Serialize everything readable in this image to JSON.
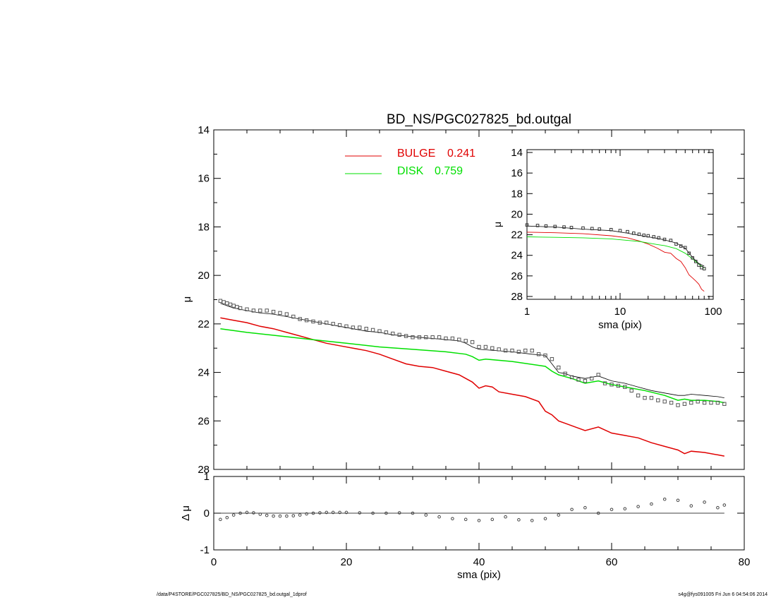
{
  "chart_data": [
    {
      "type": "line",
      "title": "BD_NS/PGC027825_bd.outgal",
      "xlabel": "",
      "ylabel": "μ",
      "xlim": [
        0,
        80
      ],
      "ylim": [
        28,
        14
      ],
      "y_inverted": true,
      "yticks": [
        14,
        16,
        18,
        20,
        22,
        24,
        26,
        28
      ],
      "legend_placement": "top-center",
      "colors": {
        "bulge": "#e00000",
        "disk": "#00e000",
        "model": "#000000",
        "data": "#555555"
      },
      "series": [
        {
          "name": "BULGE",
          "label": "0.241",
          "x": [
            1,
            3,
            5,
            7,
            9,
            11,
            13,
            15,
            17,
            19,
            21,
            23,
            25,
            27,
            29,
            31,
            33,
            35,
            37,
            39,
            40,
            41,
            42,
            43,
            45,
            47,
            49,
            50,
            51,
            52,
            53,
            55,
            56,
            58,
            60,
            62,
            64,
            66,
            68,
            70,
            71,
            72,
            74,
            76,
            77
          ],
          "y": [
            21.75,
            21.85,
            21.95,
            22.1,
            22.2,
            22.35,
            22.5,
            22.65,
            22.8,
            22.9,
            23.0,
            23.1,
            23.25,
            23.45,
            23.65,
            23.75,
            23.8,
            23.95,
            24.1,
            24.4,
            24.65,
            24.55,
            24.6,
            24.8,
            24.9,
            25.0,
            25.2,
            25.6,
            25.75,
            26.0,
            26.1,
            26.3,
            26.4,
            26.25,
            26.5,
            26.6,
            26.7,
            26.9,
            27.05,
            27.2,
            27.35,
            27.25,
            27.3,
            27.4,
            27.45
          ]
        },
        {
          "name": "DISK",
          "label": "0.759",
          "x": [
            1,
            5,
            10,
            15,
            20,
            25,
            30,
            35,
            38,
            39,
            40,
            41,
            45,
            50,
            51,
            52,
            54,
            56,
            57,
            58,
            60,
            65,
            68,
            70,
            71,
            72,
            74,
            76,
            77
          ],
          "y": [
            22.2,
            22.35,
            22.5,
            22.65,
            22.8,
            22.95,
            23.05,
            23.15,
            23.25,
            23.35,
            23.5,
            23.45,
            23.55,
            23.75,
            23.95,
            24.1,
            24.25,
            24.45,
            24.4,
            24.35,
            24.5,
            24.75,
            24.95,
            25.15,
            25.1,
            25.15,
            25.15,
            25.2,
            25.25
          ]
        },
        {
          "name": "",
          "x": [
            1,
            3,
            5,
            7,
            9,
            11,
            13,
            15,
            17,
            19,
            21,
            23,
            25,
            27,
            29,
            31,
            33,
            35,
            37,
            38,
            39,
            40,
            45,
            48,
            50,
            51,
            52,
            53,
            54,
            56,
            57,
            58,
            60,
            62,
            64,
            66,
            68,
            70,
            71,
            72,
            74,
            76,
            77
          ],
          "y": [
            21.15,
            21.35,
            21.45,
            21.55,
            21.6,
            21.7,
            21.8,
            21.9,
            22.0,
            22.1,
            22.2,
            22.3,
            22.35,
            22.45,
            22.5,
            22.55,
            22.6,
            22.65,
            22.7,
            22.8,
            22.95,
            23.05,
            23.15,
            23.25,
            23.3,
            23.65,
            24.0,
            24.05,
            24.15,
            24.25,
            24.2,
            24.15,
            24.35,
            24.45,
            24.6,
            24.75,
            24.85,
            24.95,
            24.95,
            24.9,
            24.95,
            25.0,
            25.05
          ]
        },
        {
          "name": "",
          "x": [
            1,
            1.5,
            2,
            2.5,
            3,
            3.5,
            4,
            5,
            6,
            7,
            8,
            9,
            10,
            11,
            12,
            13,
            14,
            15,
            16,
            17,
            18,
            19,
            20,
            21,
            22,
            23,
            24,
            25,
            26,
            27,
            28,
            29,
            30,
            31,
            32,
            33,
            34,
            35,
            36,
            37,
            38,
            39,
            40,
            41,
            42,
            43,
            44,
            45,
            46,
            47,
            48,
            49,
            50,
            51,
            52,
            53,
            54,
            55,
            56,
            57,
            58,
            59,
            60,
            61,
            62,
            63,
            64,
            65,
            66,
            67,
            68,
            69,
            70,
            71,
            72,
            73,
            74,
            75,
            76,
            77
          ],
          "y": [
            21.05,
            21.1,
            21.15,
            21.2,
            21.25,
            21.3,
            21.35,
            21.4,
            21.45,
            21.45,
            21.45,
            21.5,
            21.55,
            21.6,
            21.7,
            21.8,
            21.85,
            21.9,
            21.95,
            21.95,
            22.0,
            22.05,
            22.1,
            22.15,
            22.15,
            22.2,
            22.25,
            22.3,
            22.35,
            22.4,
            22.45,
            22.5,
            22.55,
            22.55,
            22.55,
            22.55,
            22.55,
            22.6,
            22.6,
            22.65,
            22.7,
            22.75,
            22.95,
            22.95,
            23.0,
            23.05,
            23.1,
            23.1,
            23.15,
            23.1,
            23.1,
            23.25,
            23.3,
            23.45,
            23.8,
            24.05,
            24.2,
            24.3,
            24.35,
            24.25,
            24.1,
            24.45,
            24.5,
            24.55,
            24.6,
            24.75,
            24.95,
            25.05,
            25.05,
            25.15,
            25.2,
            25.25,
            25.35,
            25.3,
            25.25,
            25.2,
            25.25,
            25.25,
            25.25,
            25.3
          ]
        }
      ],
      "legend": [
        {
          "name": "BULGE",
          "value": "0.241",
          "color": "#e00000"
        },
        {
          "name": "DISK",
          "value": "0.759",
          "color": "#00e000"
        }
      ]
    },
    {
      "type": "scatter",
      "title": "",
      "xlabel": "sma (pix)",
      "ylabel": "Δ μ",
      "xlim": [
        0,
        80
      ],
      "ylim": [
        -1,
        1
      ],
      "xticks": [
        0,
        20,
        40,
        60,
        80
      ],
      "yticks": [
        1,
        0,
        -1
      ],
      "reference_line": 0,
      "series": [
        {
          "name": "",
          "x": [
            1,
            2,
            3,
            4,
            5,
            6,
            7,
            8,
            9,
            10,
            11,
            12,
            13,
            14,
            15,
            16,
            17,
            18,
            19,
            20,
            22,
            24,
            26,
            28,
            30,
            32,
            34,
            36,
            38,
            40,
            42,
            44,
            46,
            48,
            50,
            52,
            54,
            56,
            58,
            60,
            62,
            64,
            66,
            68,
            70,
            72,
            74,
            76,
            77
          ],
          "y": [
            -0.17,
            -0.12,
            -0.05,
            0.0,
            0.02,
            0.01,
            -0.03,
            -0.06,
            -0.08,
            -0.08,
            -0.08,
            -0.07,
            -0.05,
            -0.02,
            0.0,
            0.01,
            0.02,
            0.02,
            0.02,
            0.02,
            0.01,
            0.0,
            0.0,
            0.01,
            0.0,
            -0.05,
            -0.1,
            -0.15,
            -0.17,
            -0.2,
            -0.17,
            -0.1,
            -0.18,
            -0.2,
            -0.15,
            -0.05,
            0.1,
            0.15,
            0.0,
            0.1,
            0.12,
            0.18,
            0.25,
            0.38,
            0.35,
            0.2,
            0.3,
            0.15,
            0.22
          ]
        }
      ]
    },
    {
      "type": "line",
      "title": "",
      "xlabel": "sma (pix)",
      "ylabel": "μ",
      "x_scale": "log",
      "xlim": [
        1,
        100
      ],
      "ylim": [
        28,
        14
      ],
      "y_inverted": true,
      "xtick_labels": [
        "1",
        "10",
        "100"
      ],
      "yticks": [
        14,
        16,
        18,
        20,
        22,
        24,
        26,
        28
      ],
      "series": [
        {
          "name": "BULGE",
          "x": [
            1,
            2,
            4,
            8,
            12,
            16,
            20,
            25,
            30,
            35,
            40,
            45,
            50,
            55,
            60,
            65,
            70,
            75,
            80
          ],
          "y": [
            21.75,
            21.8,
            21.9,
            22.1,
            22.3,
            22.6,
            22.9,
            23.3,
            23.7,
            23.8,
            24.3,
            24.6,
            25.2,
            25.9,
            26.2,
            26.5,
            26.8,
            27.3,
            27.5
          ]
        },
        {
          "name": "DISK",
          "x": [
            1,
            2,
            4,
            8,
            12,
            16,
            20,
            25,
            30,
            40,
            50,
            60,
            70,
            80
          ],
          "y": [
            22.2,
            22.25,
            22.3,
            22.4,
            22.55,
            22.65,
            22.8,
            22.95,
            23.05,
            23.35,
            23.8,
            24.35,
            24.85,
            25.25
          ]
        },
        {
          "name": "",
          "x": [
            1,
            2,
            4,
            8,
            12,
            16,
            20,
            25,
            30,
            40,
            50,
            60,
            70,
            80
          ],
          "y": [
            21.15,
            21.25,
            21.45,
            21.6,
            21.85,
            22.05,
            22.2,
            22.35,
            22.5,
            22.8,
            23.3,
            24.2,
            24.8,
            25.05
          ]
        },
        {
          "name": "",
          "x": [
            1,
            1.3,
            1.6,
            2,
            2.5,
            3,
            4,
            5,
            6,
            8,
            10,
            12,
            14,
            16,
            18,
            20,
            23,
            26,
            30,
            35,
            40,
            45,
            50,
            55,
            60,
            65,
            70,
            75,
            80
          ],
          "y": [
            21.05,
            21.1,
            21.15,
            21.2,
            21.25,
            21.3,
            21.35,
            21.4,
            21.45,
            21.5,
            21.6,
            21.7,
            21.85,
            21.95,
            22.05,
            22.1,
            22.2,
            22.3,
            22.45,
            22.55,
            22.9,
            23.1,
            23.25,
            23.8,
            24.25,
            24.6,
            24.95,
            25.2,
            25.3
          ]
        }
      ]
    }
  ],
  "footer": {
    "left": "/data/P4STORE/PGC027825/BD_NS/PGC027825_bd.outgal_1dprof",
    "right": "s4g@fys091005  Fri Jun  6 04:54:06 2014"
  }
}
